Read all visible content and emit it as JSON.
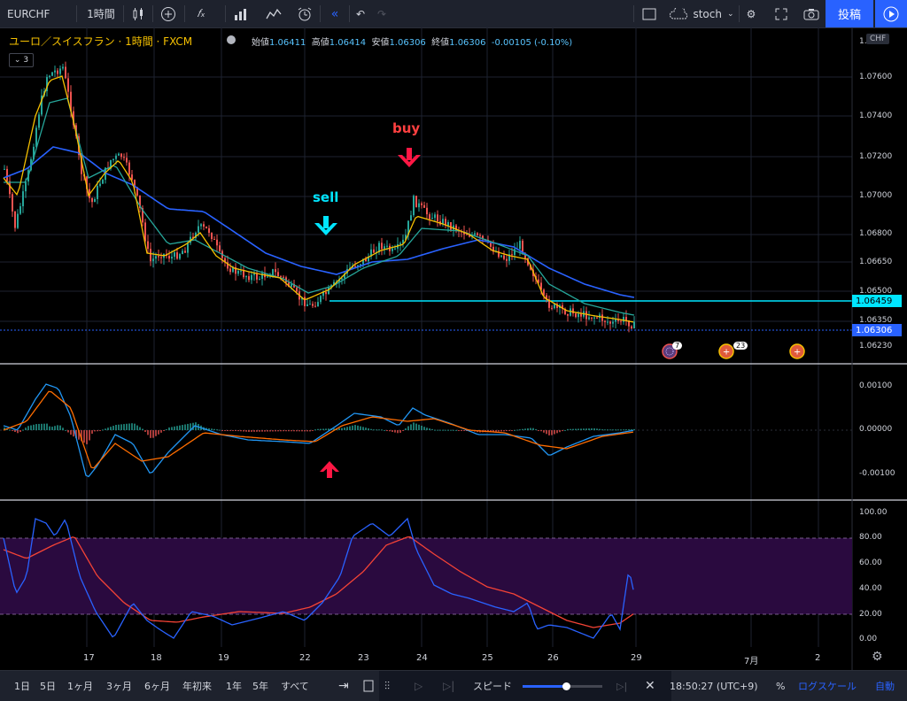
{
  "toolbar": {
    "symbol": "EURCHF",
    "interval": "1時間",
    "template": "stoch",
    "post_label": "投稿"
  },
  "legend": {
    "title": "ユーロ／スイスフラン · 1時間 · FXCM",
    "open_label": "始値",
    "open": "1.06411",
    "high_label": "高値",
    "high": "1.06414",
    "low_label": "安値",
    "low": "1.06306",
    "close_label": "終値",
    "close": "1.06306",
    "change": "-0.00105 (-0.10%)",
    "indicator_count": "3"
  },
  "price_axis": {
    "currency": "CHF",
    "labels": [
      "1.07600",
      "1.07400",
      "1.07200",
      "1.07000",
      "1.06800",
      "1.06650",
      "1.06500",
      "1.06350",
      "1.06230"
    ],
    "tag_line": "1.06459",
    "tag_current": "1.06306"
  },
  "macd_axis": {
    "labels": [
      "0.00100",
      "0.00000",
      "-0.00100"
    ]
  },
  "stoch_axis": {
    "labels": [
      "100.00",
      "80.00",
      "60.00",
      "40.00",
      "20.00",
      "0.00"
    ]
  },
  "date_axis": {
    "labels": [
      "17",
      "18",
      "19",
      "22",
      "23",
      "24",
      "25",
      "26",
      "29",
      "7月",
      "2"
    ]
  },
  "annotations": {
    "sell": "sell",
    "buy": "buy"
  },
  "events": {
    "badge_a": "7",
    "badge_b": "23"
  },
  "bottombar": {
    "ranges": [
      "1日",
      "5日",
      "1ヶ月",
      "3ヶ月",
      "6ヶ月",
      "年初来",
      "1年",
      "5年",
      "すべて"
    ],
    "speed_label": "スピード",
    "time": "18:50:27 (UTC+9)",
    "percent": "%",
    "log": "ログスケール",
    "auto": "自動"
  },
  "colors": {
    "up": "#26a69a",
    "down": "#ef5350",
    "ma_fast": "#f5c000",
    "ma_mid": "#26a69a",
    "ma_slow": "#2962ff",
    "line_tag": "#00e5ff",
    "macd": "#2196f3",
    "signal": "#ff6d00",
    "stoch_k": "#2962ff",
    "stoch_d": "#f44336"
  }
}
